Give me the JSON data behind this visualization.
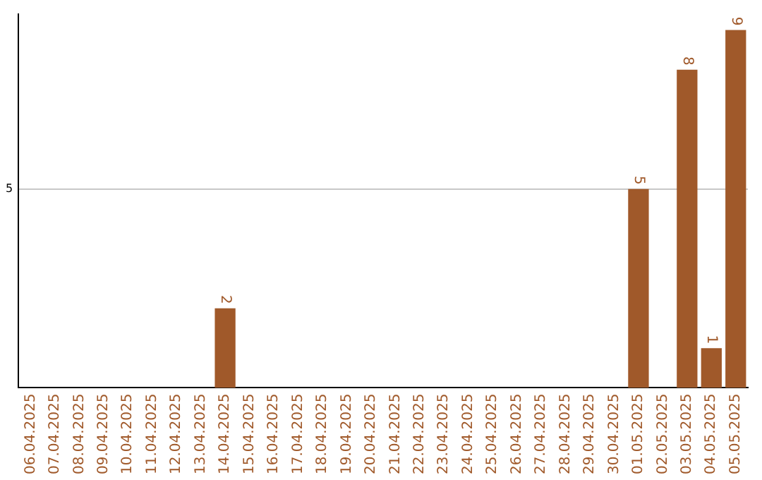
{
  "chart_data": {
    "type": "bar",
    "categories": [
      "06.04.2025",
      "07.04.2025",
      "08.04.2025",
      "09.04.2025",
      "10.04.2025",
      "11.04.2025",
      "12.04.2025",
      "13.04.2025",
      "14.04.2025",
      "15.04.2025",
      "16.04.2025",
      "17.04.2025",
      "18.04.2025",
      "19.04.2025",
      "20.04.2025",
      "21.04.2025",
      "22.04.2025",
      "23.04.2025",
      "24.04.2025",
      "25.04.2025",
      "26.04.2025",
      "27.04.2025",
      "28.04.2025",
      "29.04.2025",
      "30.04.2025",
      "01.05.2025",
      "02.05.2025",
      "03.05.2025",
      "04.05.2025",
      "05.05.2025"
    ],
    "values": [
      0,
      0,
      0,
      0,
      0,
      0,
      0,
      0,
      2,
      0,
      0,
      0,
      0,
      0,
      0,
      0,
      0,
      0,
      0,
      0,
      0,
      0,
      0,
      0,
      0,
      5,
      0,
      8,
      1,
      9
    ],
    "value_labels": [
      null,
      null,
      null,
      null,
      null,
      null,
      null,
      null,
      "2",
      null,
      null,
      null,
      null,
      null,
      null,
      null,
      null,
      null,
      null,
      null,
      null,
      null,
      null,
      null,
      null,
      "5",
      null,
      "8",
      "1",
      "9"
    ],
    "color": "#a0592a",
    "ylim": [
      0,
      9.4
    ],
    "yticks": [
      5
    ],
    "grid": "y",
    "legend": false
  }
}
